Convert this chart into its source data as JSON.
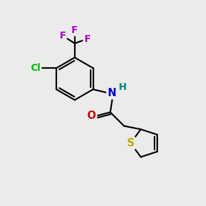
{
  "bg_color": "#ebebeb",
  "bond_color": "#000000",
  "bond_width": 1.6,
  "atom_colors": {
    "N": "#0000cc",
    "H": "#008888",
    "O": "#cc0000",
    "S": "#bbaa00",
    "Cl": "#00bb00",
    "F": "#aa00cc"
  },
  "font_size": 10,
  "figsize": [
    3.0,
    3.0
  ],
  "dpi": 100
}
